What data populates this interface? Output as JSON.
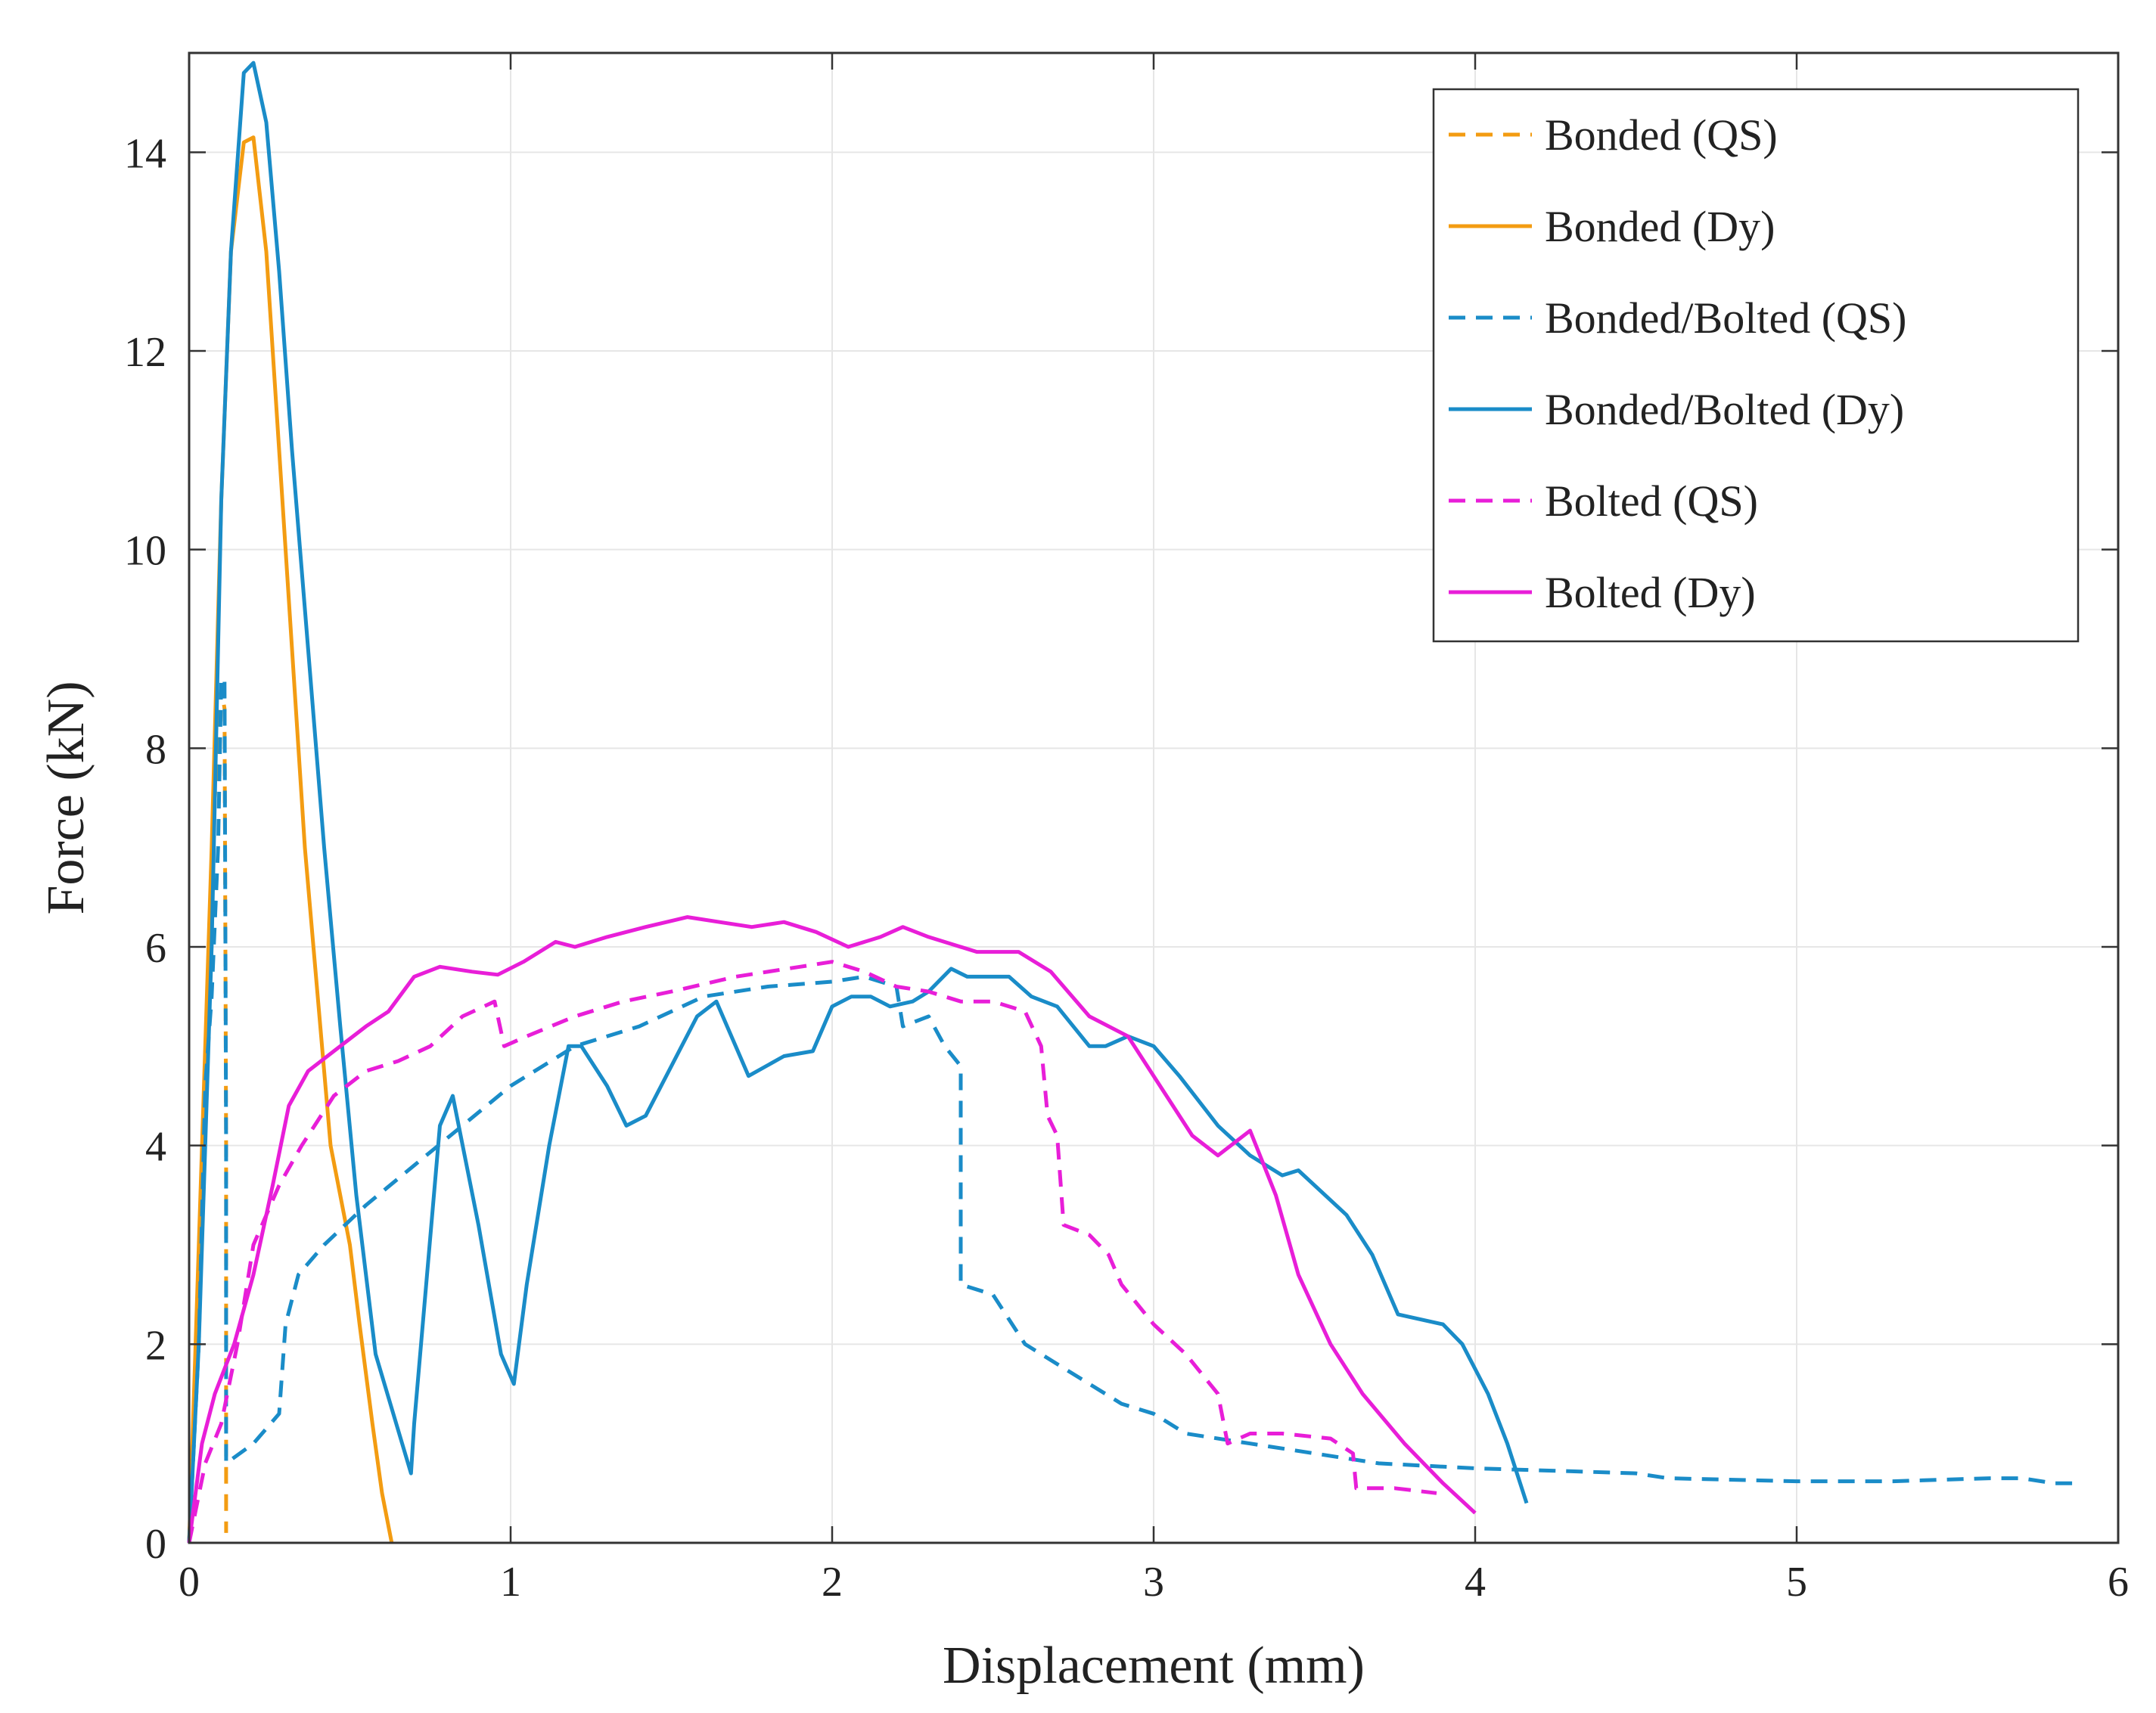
{
  "chart_data": {
    "type": "line",
    "title": "",
    "xlabel": "Displacement (mm)",
    "ylabel": "Force (kN)",
    "xlim": [
      0,
      6
    ],
    "ylim": [
      0,
      15
    ],
    "xticks": [
      0,
      1,
      2,
      3,
      4,
      5,
      6
    ],
    "yticks": [
      0,
      2,
      4,
      6,
      8,
      10,
      12,
      14
    ],
    "grid": true,
    "legend_position": "top-right",
    "series": [
      {
        "name": "Bonded (QS)",
        "color": "#F39C12",
        "dash": "dashed",
        "points": [
          [
            0,
            0
          ],
          [
            0.02,
            1.6
          ],
          [
            0.05,
            4.5
          ],
          [
            0.08,
            7.5
          ],
          [
            0.1,
            8.6
          ],
          [
            0.11,
            8.4
          ],
          [
            0.115,
            4.0
          ],
          [
            0.115,
            0.1
          ]
        ]
      },
      {
        "name": "Bonded (Dy)",
        "color": "#F39C12",
        "dash": "solid",
        "points": [
          [
            0,
            0
          ],
          [
            0.03,
            3.0
          ],
          [
            0.07,
            7.0
          ],
          [
            0.1,
            10.5
          ],
          [
            0.13,
            13.0
          ],
          [
            0.17,
            14.1
          ],
          [
            0.2,
            14.15
          ],
          [
            0.24,
            13.0
          ],
          [
            0.28,
            11.0
          ],
          [
            0.32,
            9.0
          ],
          [
            0.36,
            7.0
          ],
          [
            0.4,
            5.5
          ],
          [
            0.44,
            4.0
          ],
          [
            0.5,
            3.0
          ],
          [
            0.53,
            2.2
          ],
          [
            0.57,
            1.2
          ],
          [
            0.6,
            0.5
          ],
          [
            0.63,
            0.0
          ]
        ]
      },
      {
        "name": "Bonded/Bolted (QS)",
        "color": "#1A8CC8",
        "dash": "dashed",
        "points": [
          [
            0,
            0
          ],
          [
            0.03,
            2.0
          ],
          [
            0.05,
            4.6
          ],
          [
            0.07,
            5.5
          ],
          [
            0.09,
            7.0
          ],
          [
            0.1,
            8.7
          ],
          [
            0.11,
            8.7
          ],
          [
            0.115,
            4.0
          ],
          [
            0.115,
            0.8
          ],
          [
            0.2,
            1.0
          ],
          [
            0.28,
            1.3
          ],
          [
            0.3,
            2.2
          ],
          [
            0.34,
            2.7
          ],
          [
            0.42,
            3.0
          ],
          [
            0.55,
            3.4
          ],
          [
            0.7,
            3.8
          ],
          [
            0.85,
            4.2
          ],
          [
            1.0,
            4.6
          ],
          [
            1.1,
            4.8
          ],
          [
            1.2,
            5.0
          ],
          [
            1.4,
            5.2
          ],
          [
            1.6,
            5.5
          ],
          [
            1.8,
            5.6
          ],
          [
            2.0,
            5.65
          ],
          [
            2.1,
            5.7
          ],
          [
            2.2,
            5.6
          ],
          [
            2.22,
            5.2
          ],
          [
            2.3,
            5.3
          ],
          [
            2.35,
            5.0
          ],
          [
            2.4,
            4.8
          ],
          [
            2.4,
            2.6
          ],
          [
            2.5,
            2.5
          ],
          [
            2.6,
            2.0
          ],
          [
            2.7,
            1.8
          ],
          [
            2.8,
            1.6
          ],
          [
            2.9,
            1.4
          ],
          [
            3.0,
            1.3
          ],
          [
            3.1,
            1.1
          ],
          [
            3.3,
            1.0
          ],
          [
            3.5,
            0.9
          ],
          [
            3.7,
            0.8
          ],
          [
            4.0,
            0.75
          ],
          [
            4.3,
            0.72
          ],
          [
            4.5,
            0.7
          ],
          [
            4.6,
            0.65
          ],
          [
            5.0,
            0.62
          ],
          [
            5.3,
            0.62
          ],
          [
            5.6,
            0.65
          ],
          [
            5.7,
            0.65
          ],
          [
            5.8,
            0.6
          ],
          [
            5.87,
            0.6
          ]
        ]
      },
      {
        "name": "Bonded/Bolted (Dy)",
        "color": "#1A8CC8",
        "dash": "solid",
        "points": [
          [
            0,
            0
          ],
          [
            0.03,
            2.0
          ],
          [
            0.07,
            6.0
          ],
          [
            0.1,
            10.5
          ],
          [
            0.13,
            13.0
          ],
          [
            0.17,
            14.8
          ],
          [
            0.2,
            14.9
          ],
          [
            0.24,
            14.3
          ],
          [
            0.28,
            12.8
          ],
          [
            0.32,
            11.0
          ],
          [
            0.37,
            9.0
          ],
          [
            0.42,
            7.0
          ],
          [
            0.47,
            5.2
          ],
          [
            0.52,
            3.5
          ],
          [
            0.58,
            1.9
          ],
          [
            0.69,
            0.7
          ],
          [
            0.7,
            1.2
          ],
          [
            0.78,
            4.2
          ],
          [
            0.82,
            4.5
          ],
          [
            0.9,
            3.2
          ],
          [
            0.97,
            1.9
          ],
          [
            1.01,
            1.6
          ],
          [
            1.05,
            2.6
          ],
          [
            1.12,
            4.0
          ],
          [
            1.18,
            5.0
          ],
          [
            1.22,
            5.0
          ],
          [
            1.3,
            4.6
          ],
          [
            1.36,
            4.2
          ],
          [
            1.42,
            4.3
          ],
          [
            1.5,
            4.8
          ],
          [
            1.58,
            5.3
          ],
          [
            1.64,
            5.45
          ],
          [
            1.74,
            4.7
          ],
          [
            1.85,
            4.9
          ],
          [
            1.94,
            4.95
          ],
          [
            2.0,
            5.4
          ],
          [
            2.06,
            5.5
          ],
          [
            2.12,
            5.5
          ],
          [
            2.18,
            5.4
          ],
          [
            2.25,
            5.45
          ],
          [
            2.3,
            5.55
          ],
          [
            2.37,
            5.78
          ],
          [
            2.42,
            5.7
          ],
          [
            2.55,
            5.7
          ],
          [
            2.62,
            5.5
          ],
          [
            2.7,
            5.4
          ],
          [
            2.8,
            5.0
          ],
          [
            2.85,
            5.0
          ],
          [
            2.92,
            5.1
          ],
          [
            3.0,
            5.0
          ],
          [
            3.08,
            4.7
          ],
          [
            3.2,
            4.2
          ],
          [
            3.3,
            3.9
          ],
          [
            3.4,
            3.7
          ],
          [
            3.45,
            3.75
          ],
          [
            3.6,
            3.3
          ],
          [
            3.68,
            2.9
          ],
          [
            3.76,
            2.3
          ],
          [
            3.9,
            2.2
          ],
          [
            3.96,
            2.0
          ],
          [
            4.04,
            1.5
          ],
          [
            4.1,
            1.0
          ],
          [
            4.16,
            0.4
          ]
        ]
      },
      {
        "name": "Bolted (QS)",
        "color": "#E81ED8",
        "dash": "dashed",
        "points": [
          [
            0,
            0
          ],
          [
            0.05,
            0.8
          ],
          [
            0.1,
            1.2
          ],
          [
            0.15,
            2.0
          ],
          [
            0.2,
            3.0
          ],
          [
            0.28,
            3.6
          ],
          [
            0.35,
            4.0
          ],
          [
            0.45,
            4.5
          ],
          [
            0.55,
            4.75
          ],
          [
            0.65,
            4.85
          ],
          [
            0.75,
            5.0
          ],
          [
            0.85,
            5.3
          ],
          [
            0.95,
            5.45
          ],
          [
            0.98,
            5.0
          ],
          [
            1.05,
            5.1
          ],
          [
            1.2,
            5.3
          ],
          [
            1.35,
            5.45
          ],
          [
            1.5,
            5.55
          ],
          [
            1.7,
            5.7
          ],
          [
            1.9,
            5.8
          ],
          [
            2.0,
            5.85
          ],
          [
            2.1,
            5.75
          ],
          [
            2.2,
            5.6
          ],
          [
            2.3,
            5.55
          ],
          [
            2.4,
            5.45
          ],
          [
            2.5,
            5.45
          ],
          [
            2.6,
            5.35
          ],
          [
            2.65,
            5.0
          ],
          [
            2.67,
            4.3
          ],
          [
            2.7,
            4.1
          ],
          [
            2.72,
            3.2
          ],
          [
            2.8,
            3.1
          ],
          [
            2.86,
            2.9
          ],
          [
            2.9,
            2.6
          ],
          [
            3.0,
            2.2
          ],
          [
            3.1,
            1.9
          ],
          [
            3.2,
            1.5
          ],
          [
            3.23,
            1.0
          ],
          [
            3.3,
            1.1
          ],
          [
            3.4,
            1.1
          ],
          [
            3.55,
            1.05
          ],
          [
            3.62,
            0.9
          ],
          [
            3.63,
            0.55
          ],
          [
            3.75,
            0.55
          ],
          [
            3.88,
            0.5
          ]
        ]
      },
      {
        "name": "Bolted (Dy)",
        "color": "#E81ED8",
        "dash": "solid",
        "points": [
          [
            0,
            0
          ],
          [
            0.04,
            1.0
          ],
          [
            0.08,
            1.5
          ],
          [
            0.14,
            2.0
          ],
          [
            0.2,
            2.7
          ],
          [
            0.26,
            3.6
          ],
          [
            0.31,
            4.4
          ],
          [
            0.37,
            4.75
          ],
          [
            0.45,
            4.95
          ],
          [
            0.55,
            5.2
          ],
          [
            0.62,
            5.35
          ],
          [
            0.7,
            5.7
          ],
          [
            0.78,
            5.8
          ],
          [
            0.88,
            5.75
          ],
          [
            0.96,
            5.72
          ],
          [
            1.04,
            5.85
          ],
          [
            1.14,
            6.05
          ],
          [
            1.2,
            6.0
          ],
          [
            1.3,
            6.1
          ],
          [
            1.42,
            6.2
          ],
          [
            1.55,
            6.3
          ],
          [
            1.65,
            6.25
          ],
          [
            1.75,
            6.2
          ],
          [
            1.85,
            6.25
          ],
          [
            1.95,
            6.15
          ],
          [
            2.05,
            6.0
          ],
          [
            2.15,
            6.1
          ],
          [
            2.22,
            6.2
          ],
          [
            2.3,
            6.1
          ],
          [
            2.45,
            5.95
          ],
          [
            2.58,
            5.95
          ],
          [
            2.68,
            5.75
          ],
          [
            2.8,
            5.3
          ],
          [
            2.92,
            5.1
          ],
          [
            3.02,
            4.6
          ],
          [
            3.12,
            4.1
          ],
          [
            3.2,
            3.9
          ],
          [
            3.3,
            4.15
          ],
          [
            3.38,
            3.5
          ],
          [
            3.45,
            2.7
          ],
          [
            3.55,
            2.0
          ],
          [
            3.65,
            1.5
          ],
          [
            3.78,
            1.0
          ],
          [
            3.9,
            0.6
          ],
          [
            4.0,
            0.3
          ]
        ]
      }
    ]
  }
}
